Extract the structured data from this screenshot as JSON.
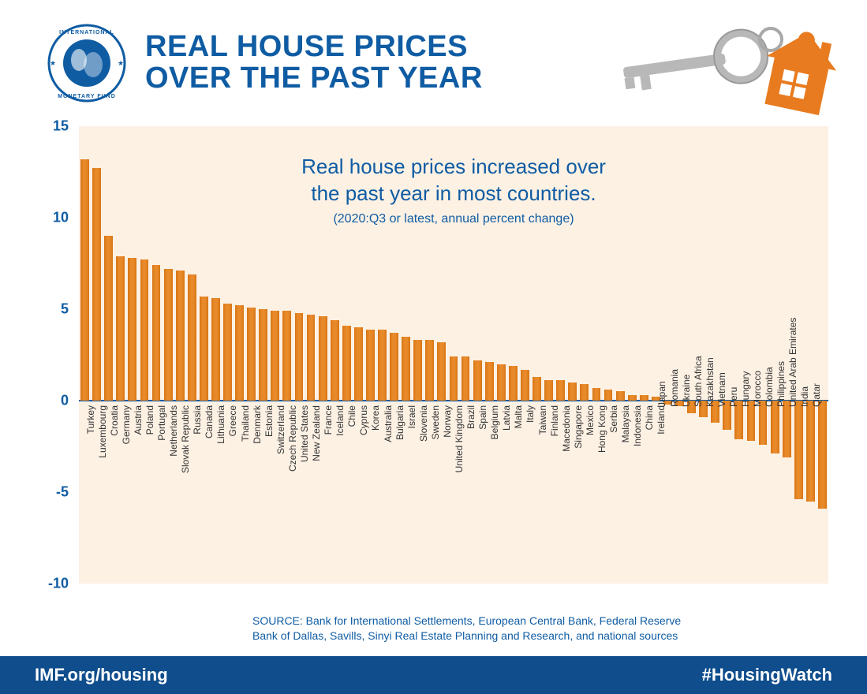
{
  "colors": {
    "title": "#0f5ca3",
    "chart_title": "#0f5ca3",
    "chart_subtitle": "#0f5ca3",
    "y_tick": "#0f5ca3",
    "plot_bg": "#fdf1e4",
    "zero_line": "#0f5ca3",
    "bar": "#e88a2a",
    "bar_gradient_dark": "#d87514",
    "source": "#0f5ca3",
    "footer_bg": "#0f4d8c",
    "key_gray": "#b8b8b8",
    "house_orange": "#e87b1f",
    "logo_blue": "#0f5ca3"
  },
  "title": "REAL HOUSE PRICES\nOVER THE PAST YEAR",
  "chart": {
    "type": "bar",
    "title": "Real house prices increased over\nthe past year in most countries.",
    "subtitle": "(2020:Q3 or latest, annual percent change)",
    "ylim": [
      -10,
      15
    ],
    "ytick_step": 5,
    "bar_width_ratio": 0.72,
    "data": [
      {
        "label": "Turkey",
        "value": 13.2
      },
      {
        "label": "Luxembourg",
        "value": 12.7
      },
      {
        "label": "Croatia",
        "value": 9.0
      },
      {
        "label": "Germany",
        "value": 7.9
      },
      {
        "label": "Austria",
        "value": 7.8
      },
      {
        "label": "Poland",
        "value": 7.7
      },
      {
        "label": "Portugal",
        "value": 7.4
      },
      {
        "label": "Netherlands",
        "value": 7.2
      },
      {
        "label": "Slovak Republic",
        "value": 7.1
      },
      {
        "label": "Russia",
        "value": 6.9
      },
      {
        "label": "Canada",
        "value": 5.7
      },
      {
        "label": "Lithuania",
        "value": 5.6
      },
      {
        "label": "Greece",
        "value": 5.3
      },
      {
        "label": "Thailand",
        "value": 5.2
      },
      {
        "label": "Denmark",
        "value": 5.1
      },
      {
        "label": "Estonia",
        "value": 5.0
      },
      {
        "label": "Switzerland",
        "value": 4.9
      },
      {
        "label": "Czech Republic",
        "value": 4.9
      },
      {
        "label": "United States",
        "value": 4.8
      },
      {
        "label": "New Zealand",
        "value": 4.7
      },
      {
        "label": "France",
        "value": 4.6
      },
      {
        "label": "Iceland",
        "value": 4.4
      },
      {
        "label": "Chile",
        "value": 4.1
      },
      {
        "label": "Cyprus",
        "value": 4.0
      },
      {
        "label": "Korea",
        "value": 3.9
      },
      {
        "label": "Australia",
        "value": 3.9
      },
      {
        "label": "Bulgaria",
        "value": 3.7
      },
      {
        "label": "Israel",
        "value": 3.5
      },
      {
        "label": "Slovenia",
        "value": 3.3
      },
      {
        "label": "Sweden",
        "value": 3.3
      },
      {
        "label": "Norway",
        "value": 3.2
      },
      {
        "label": "United Kingdom",
        "value": 2.4
      },
      {
        "label": "Brazil",
        "value": 2.4
      },
      {
        "label": "Spain",
        "value": 2.2
      },
      {
        "label": "Belgium",
        "value": 2.1
      },
      {
        "label": "Latvia",
        "value": 2.0
      },
      {
        "label": "Malta",
        "value": 1.9
      },
      {
        "label": "Italy",
        "value": 1.7
      },
      {
        "label": "Taiwan",
        "value": 1.3
      },
      {
        "label": "Finland",
        "value": 1.1
      },
      {
        "label": "Macedonia",
        "value": 1.1
      },
      {
        "label": "Singapore",
        "value": 1.0
      },
      {
        "label": "Mexico",
        "value": 0.9
      },
      {
        "label": "Hong Kong",
        "value": 0.7
      },
      {
        "label": "Serbia",
        "value": 0.6
      },
      {
        "label": "Malaysia",
        "value": 0.5
      },
      {
        "label": "Indonesia",
        "value": 0.3
      },
      {
        "label": "China",
        "value": 0.3
      },
      {
        "label": "Ireland",
        "value": 0.2
      },
      {
        "label": "Japan",
        "value": -0.2
      },
      {
        "label": "Romania",
        "value": -0.3
      },
      {
        "label": "Ukraine",
        "value": -0.7
      },
      {
        "label": "South Africa",
        "value": -0.9
      },
      {
        "label": "Kazakhstan",
        "value": -1.2
      },
      {
        "label": "Vietnam",
        "value": -1.6
      },
      {
        "label": "Peru",
        "value": -2.1
      },
      {
        "label": "Hungary",
        "value": -2.2
      },
      {
        "label": "Morocco",
        "value": -2.4
      },
      {
        "label": "Colombia",
        "value": -2.9
      },
      {
        "label": "Philippines",
        "value": -3.1
      },
      {
        "label": "United Arab Emirates",
        "value": -5.4
      },
      {
        "label": "India",
        "value": -5.5
      },
      {
        "label": "Qatar",
        "value": -5.9
      }
    ]
  },
  "source": "SOURCE: Bank for International Settlements, European Central Bank, Federal Reserve\nBank of Dallas, Savills, Sinyi Real Estate Planning and Research, and national sources",
  "footer": {
    "left": "IMF.org/housing",
    "right": "#HousingWatch"
  }
}
